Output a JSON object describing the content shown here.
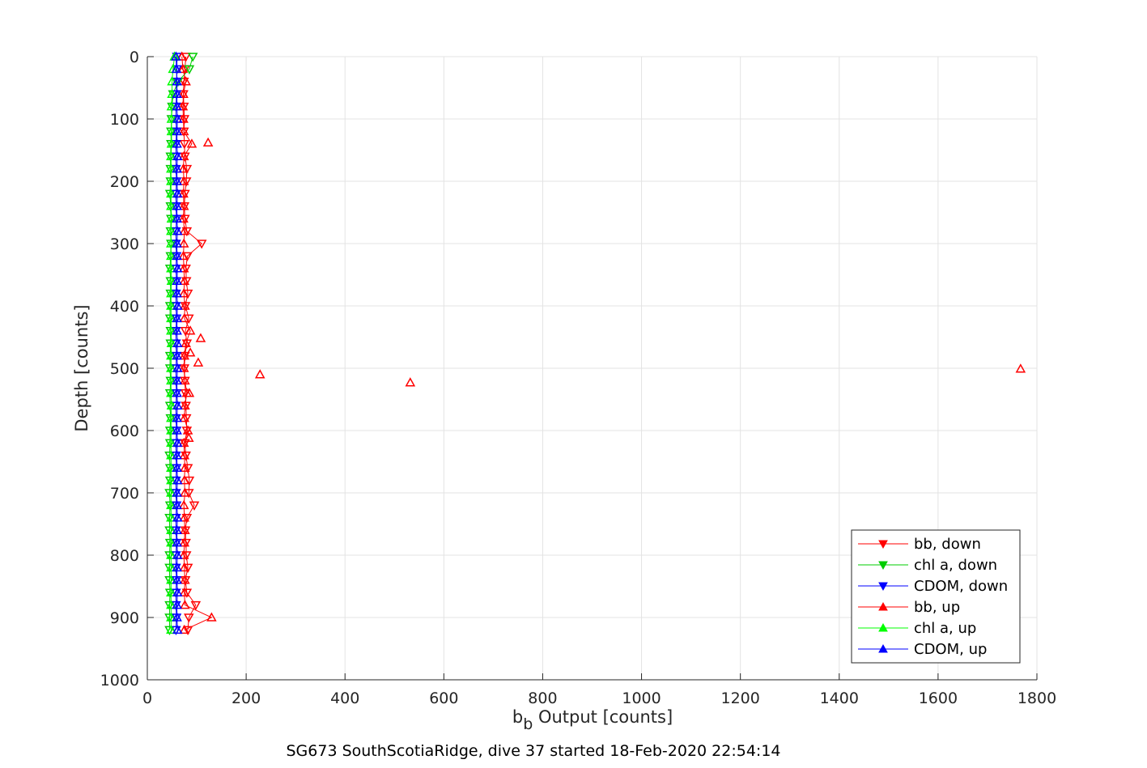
{
  "chart_data": {
    "type": "line",
    "title": "SG673 SouthScotiaRidge, dive 37 started 18-Feb-2020 22:54:14",
    "xlabel_main": "b",
    "xlabel_sub": "b",
    "xlabel_rest": " Output [counts]",
    "ylabel": "Depth [counts]",
    "xlim": [
      0,
      1800
    ],
    "ylim": [
      0,
      1000
    ],
    "y_reversed": true,
    "grid": true,
    "legend_placement": "bottom-right",
    "xticks": [
      0,
      200,
      400,
      600,
      800,
      1000,
      1200,
      1400,
      1600,
      1800
    ],
    "yticks": [
      0,
      100,
      200,
      300,
      400,
      500,
      600,
      700,
      800,
      900,
      1000
    ],
    "depths": [
      0,
      20,
      40,
      60,
      80,
      100,
      120,
      140,
      160,
      180,
      200,
      220,
      240,
      260,
      280,
      300,
      320,
      340,
      360,
      380,
      400,
      420,
      440,
      460,
      480,
      500,
      520,
      540,
      560,
      580,
      600,
      620,
      640,
      660,
      680,
      700,
      720,
      740,
      760,
      780,
      800,
      820,
      840,
      860,
      880,
      900,
      920
    ],
    "series": [
      {
        "name": "bb, down",
        "color": "#ff0000",
        "marker": "triangle-down",
        "values": [
          78,
          76,
          74,
          73,
          74,
          75,
          74,
          75,
          76,
          80,
          79,
          76,
          75,
          76,
          80,
          110,
          81,
          78,
          79,
          82,
          77,
          84,
          77,
          80,
          76,
          75,
          76,
          77,
          78,
          79,
          80,
          76,
          78,
          82,
          85,
          84,
          95,
          80,
          77,
          78,
          79,
          82,
          77,
          80,
          98,
          84,
          82
        ]
      },
      {
        "name": "chl a, down",
        "color": "#00cc00",
        "marker": "triangle-down",
        "values": [
          92,
          85,
          62,
          52,
          50,
          49,
          48,
          48,
          47,
          47,
          47,
          46,
          47,
          48,
          47,
          48,
          47,
          46,
          47,
          47,
          46,
          46,
          47,
          47,
          46,
          46,
          47,
          46,
          46,
          47,
          46,
          46,
          45,
          46,
          46,
          45,
          46,
          45,
          45,
          46,
          45,
          45,
          45,
          46,
          45,
          45,
          45
        ]
      },
      {
        "name": "CDOM, down",
        "color": "#0000ff",
        "marker": "triangle-down",
        "values": [
          60,
          60,
          59,
          59,
          58,
          58,
          59,
          58,
          58,
          58,
          59,
          58,
          58,
          59,
          58,
          58,
          59,
          58,
          59,
          58,
          58,
          59,
          58,
          58,
          59,
          58,
          58,
          59,
          58,
          58,
          59,
          58,
          58,
          59,
          58,
          58,
          59,
          58,
          58,
          59,
          58,
          58,
          59,
          58,
          58,
          59,
          58
        ]
      },
      {
        "name": "bb, up",
        "color": "#ff0000",
        "marker": "triangle-up",
        "values": [
          70,
          72,
          78,
          73,
          72,
          73,
          74,
          90,
          74,
          73,
          74,
          73,
          74,
          73,
          75,
          74,
          73,
          74,
          75,
          74,
          76,
          75,
          87,
          78,
          75,
          74,
          76,
          80,
          76,
          75,
          82,
          74,
          75,
          76,
          75,
          76,
          74,
          75,
          76,
          75,
          74,
          75,
          76,
          75,
          76,
          130,
          75
        ],
        "outliers": [
          [
            123,
            138
          ],
          [
            108,
            452
          ],
          [
            87,
            475
          ],
          [
            103,
            491
          ],
          [
            1767,
            501
          ],
          [
            228,
            510
          ],
          [
            532,
            523
          ],
          [
            85,
            540
          ],
          [
            84,
            612
          ]
        ]
      },
      {
        "name": "chl a, up",
        "color": "#00ff00",
        "marker": "triangle-up",
        "values": [
          55,
          52,
          50,
          50,
          49,
          49,
          49,
          49,
          48,
          48,
          48,
          48,
          48,
          49,
          48,
          48,
          48,
          48,
          49,
          48,
          48,
          48,
          48,
          49,
          48,
          48,
          48,
          48,
          49,
          48,
          48,
          48,
          48,
          48,
          48,
          48,
          48,
          48,
          48,
          48,
          48,
          48,
          48,
          48,
          48,
          48,
          48
        ]
      },
      {
        "name": "CDOM, up",
        "color": "#0000ff",
        "marker": "triangle-up",
        "values": [
          58,
          59,
          60,
          60,
          60,
          61,
          60,
          60,
          61,
          60,
          60,
          61,
          60,
          60,
          61,
          60,
          60,
          61,
          60,
          60,
          61,
          60,
          60,
          61,
          60,
          61,
          60,
          60,
          61,
          60,
          60,
          61,
          60,
          60,
          61,
          60,
          60,
          61,
          60,
          60,
          61,
          60,
          60,
          61,
          60,
          60,
          61
        ]
      }
    ]
  }
}
